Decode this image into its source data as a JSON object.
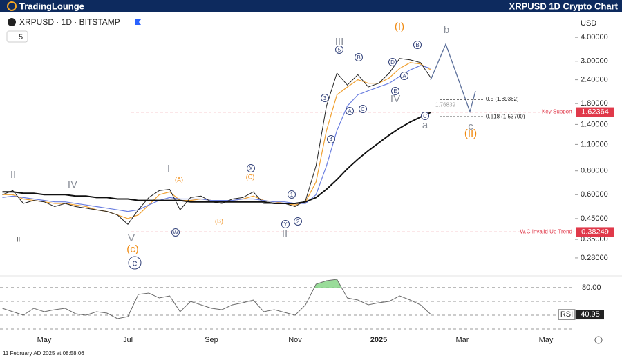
{
  "header": {
    "brand": "TradingLounge",
    "title": "XRPUSD 1D Crypto Chart",
    "symbol": "XRPUSD · 1D · BITSTAMP",
    "badge": "5",
    "currency": "USD",
    "timestamp": "11 February AD 2025 at 08:58:06"
  },
  "chart_data": {
    "type": "line",
    "log_scale": true,
    "categories": [
      null,
      null,
      null,
      null,
      "May",
      null,
      null,
      null,
      null,
      null,
      null,
      null,
      "Jul",
      null,
      null,
      null,
      null,
      null,
      null,
      null,
      "Sep",
      null,
      null,
      null,
      null,
      null,
      null,
      null,
      "Nov",
      null,
      null,
      null,
      null,
      null,
      null,
      null,
      "2025",
      null,
      null,
      null,
      null,
      null,
      null,
      null,
      "Mar",
      null,
      null,
      null,
      null,
      null,
      null,
      null,
      "May",
      null,
      null
    ],
    "series": [
      {
        "color": "#f0a030",
        "values": [
          0.6,
          0.6,
          0.57,
          0.56,
          0.55,
          0.54,
          0.54,
          0.53,
          0.52,
          0.5,
          0.49,
          0.47,
          0.45,
          0.47,
          0.53,
          0.6,
          0.62,
          0.56,
          0.56,
          0.57,
          0.56,
          0.55,
          0.56,
          0.57,
          0.59,
          0.56,
          0.55,
          0.54,
          0.53,
          0.55,
          0.7,
          1.3,
          2.0,
          2.2,
          2.4,
          2.3,
          2.3,
          2.45,
          2.75,
          2.95,
          2.9,
          2.7,
          null,
          null,
          null,
          null,
          null,
          null,
          null,
          null,
          null,
          null,
          null,
          null,
          null
        ]
      },
      {
        "color": "#6b7fe0",
        "values": [
          0.58,
          0.59,
          0.58,
          0.57,
          0.56,
          0.55,
          0.55,
          0.54,
          0.53,
          0.52,
          0.51,
          0.5,
          0.49,
          0.5,
          0.53,
          0.56,
          0.58,
          0.57,
          0.57,
          0.57,
          0.56,
          0.56,
          0.56,
          0.57,
          0.57,
          0.56,
          0.55,
          0.55,
          0.54,
          0.54,
          0.6,
          0.85,
          1.3,
          1.75,
          2.0,
          2.1,
          2.2,
          2.3,
          2.5,
          2.7,
          2.85,
          2.75,
          null,
          null,
          null,
          null,
          null,
          null,
          null,
          null,
          null,
          null,
          null,
          null,
          null
        ]
      },
      {
        "color": "#222222",
        "values": [
          0.6,
          0.63,
          0.54,
          0.56,
          0.55,
          0.52,
          0.54,
          0.52,
          0.51,
          0.5,
          0.49,
          0.47,
          0.42,
          0.5,
          0.58,
          0.63,
          0.64,
          0.5,
          0.58,
          0.59,
          0.55,
          0.54,
          0.57,
          0.58,
          0.62,
          0.54,
          0.54,
          0.54,
          0.52,
          0.56,
          0.85,
          1.75,
          2.6,
          2.25,
          2.55,
          2.2,
          2.3,
          2.6,
          3.1,
          3.05,
          2.95,
          2.45,
          null,
          null,
          null,
          null,
          null,
          null,
          null,
          null,
          null,
          null,
          null,
          null,
          null
        ]
      },
      {
        "color": "#111111",
        "values": [
          0.62,
          0.62,
          0.61,
          0.61,
          0.6,
          0.6,
          0.6,
          0.59,
          0.59,
          0.58,
          0.58,
          0.57,
          0.57,
          0.56,
          0.56,
          0.56,
          0.56,
          0.56,
          0.55,
          0.55,
          0.55,
          0.55,
          0.55,
          0.55,
          0.55,
          0.55,
          0.54,
          0.54,
          0.54,
          0.55,
          0.58,
          0.64,
          0.72,
          0.82,
          0.92,
          1.02,
          1.12,
          1.23,
          1.34,
          1.44,
          1.53,
          1.62,
          null,
          null,
          null,
          null,
          null,
          null,
          null,
          null,
          null,
          null,
          null,
          null,
          null
        ]
      }
    ],
    "ylim": [
      0.235,
      4.5
    ],
    "yticks": [
      {
        "value": 4,
        "label": "4.00000"
      },
      {
        "value": 3,
        "label": "3.00000"
      },
      {
        "value": 2.4,
        "label": "2.40000"
      },
      {
        "value": 1.8,
        "label": "1.80000"
      },
      {
        "value": 1.4,
        "label": "1.40000"
      },
      {
        "value": 1.1,
        "label": "1.10000"
      },
      {
        "value": 0.8,
        "label": "0.80000"
      },
      {
        "value": 0.6,
        "label": "0.60000"
      },
      {
        "value": 0.45,
        "label": "0.45000"
      },
      {
        "value": 0.35,
        "label": "0.35000"
      },
      {
        "value": 0.28,
        "label": "0.28000"
      }
    ],
    "levels": [
      {
        "value": 1.62364,
        "text": "Key Support",
        "color": "#e0394a"
      },
      {
        "value": 0.38249,
        "text": "W.C.Invalid Up Trend",
        "color": "#e0394a"
      }
    ],
    "fib": [
      {
        "value": 1.89362,
        "label": "0.5 (1.89362)"
      },
      {
        "value": 1.537,
        "label": "0.618 (1.53700)"
      }
    ],
    "marker": 1.76839,
    "annotations": [
      {
        "text": "II",
        "style": "wave"
      },
      {
        "text": "IV",
        "style": "wave"
      },
      {
        "text": "III",
        "style": "small"
      },
      {
        "text": "V",
        "style": "wave"
      },
      {
        "text": "(c)",
        "style": "major"
      },
      {
        "text": "e",
        "style": "circle"
      },
      {
        "text": "I",
        "style": "wave"
      },
      {
        "text": "(A)",
        "style": "minor"
      },
      {
        "text": "W",
        "style": "circle"
      },
      {
        "text": "(B)",
        "style": "minor"
      },
      {
        "text": "X",
        "style": "circle"
      },
      {
        "text": "(C)",
        "style": "minor"
      },
      {
        "text": "1",
        "style": "circle"
      },
      {
        "text": "Y",
        "style": "circle"
      },
      {
        "text": "2",
        "style": "circle"
      },
      {
        "text": "II",
        "style": "wave"
      },
      {
        "text": "3",
        "style": "circle"
      },
      {
        "text": "4",
        "style": "circle"
      },
      {
        "text": "5",
        "style": "circle"
      },
      {
        "text": "III",
        "style": "wave"
      },
      {
        "text": "B",
        "style": "circle"
      },
      {
        "text": "A",
        "style": "circle"
      },
      {
        "text": "C",
        "style": "circle"
      },
      {
        "text": "D",
        "style": "circle"
      },
      {
        "text": "A",
        "style": "circle"
      },
      {
        "text": "B",
        "style": "circle"
      },
      {
        "text": "E",
        "style": "circle"
      },
      {
        "text": "IV",
        "style": "wave"
      },
      {
        "text": "(I)",
        "style": "major"
      },
      {
        "text": "C",
        "style": "circle"
      },
      {
        "text": "a",
        "style": "wave"
      },
      {
        "text": "b",
        "style": "wave"
      },
      {
        "text": "c",
        "style": "wave"
      },
      {
        "text": "(II)",
        "style": "major"
      }
    ],
    "rsi": {
      "label": "RSI",
      "color": "#6a6a6a",
      "values": [
        50,
        45,
        40,
        50,
        45,
        48,
        50,
        42,
        40,
        45,
        43,
        35,
        38,
        70,
        72,
        65,
        68,
        45,
        60,
        55,
        50,
        48,
        55,
        58,
        62,
        45,
        48,
        44,
        40,
        55,
        85,
        90,
        92,
        65,
        62,
        55,
        58,
        60,
        68,
        62,
        55,
        40.95,
        null,
        null,
        null,
        null,
        null,
        null,
        null,
        null,
        null,
        null,
        null,
        null,
        null
      ],
      "last": 40.95,
      "ylim": [
        15,
        100
      ],
      "yticks": [
        {
          "value": 80,
          "label": "80.00"
        }
      ],
      "levels": [
        60,
        40,
        20
      ],
      "overbought": 80
    }
  }
}
